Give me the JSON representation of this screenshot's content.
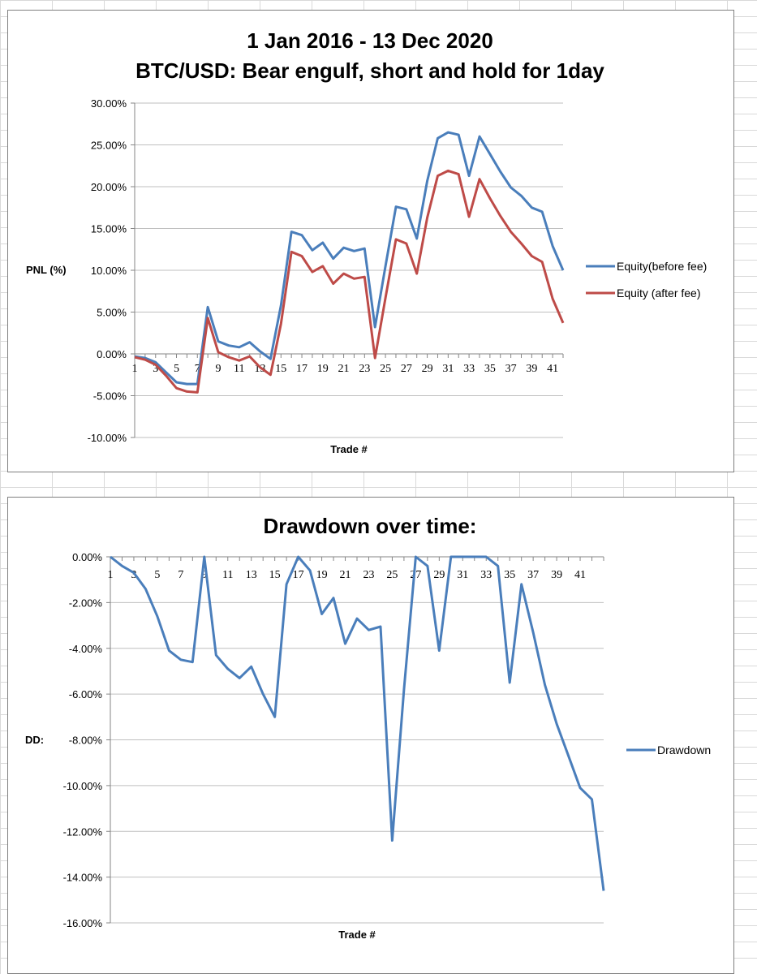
{
  "chart_data": [
    {
      "type": "line",
      "title_lines": [
        "1 Jan 2016 - 13 Dec 2020",
        "BTC/USD: Bear engulf, short and hold for 1day"
      ],
      "xlabel": "Trade #",
      "ylabel": "PNL (%)",
      "ylim": [
        -10,
        30
      ],
      "ytick_step": 5,
      "ytick_labels": [
        "30.00%",
        "25.00%",
        "20.00%",
        "15.00%",
        "10.00%",
        "5.00%",
        "0.00%",
        "-5.00%",
        "-10.00%"
      ],
      "x_tick_labels": [
        "1",
        "3",
        "5",
        "7",
        "9",
        "11",
        "13",
        "15",
        "17",
        "19",
        "21",
        "23",
        "25",
        "27",
        "29",
        "31",
        "33",
        "35",
        "37",
        "39",
        "41"
      ],
      "grid": true,
      "legend_position": "right",
      "series": [
        {
          "name": "Equity(before fee)",
          "color": "#4a7ebb",
          "values": [
            -0.3,
            -0.5,
            -1.0,
            -2.2,
            -3.4,
            -3.6,
            -3.6,
            5.6,
            1.5,
            1.0,
            0.8,
            1.4,
            0.3,
            -0.6,
            5.8,
            14.6,
            14.2,
            12.4,
            13.3,
            11.4,
            12.7,
            12.3,
            12.6,
            3.2,
            10.5,
            17.6,
            17.3,
            13.8,
            20.7,
            25.8,
            26.5,
            26.2,
            21.3,
            26.0,
            23.9,
            21.8,
            19.9,
            18.9,
            17.5,
            17.0,
            12.9,
            10.0
          ]
        },
        {
          "name": "Equity (after fee)",
          "color": "#be4b48",
          "values": [
            -0.4,
            -0.7,
            -1.3,
            -2.6,
            -4.1,
            -4.5,
            -4.6,
            4.3,
            0.2,
            -0.4,
            -0.8,
            -0.3,
            -1.6,
            -2.5,
            3.6,
            12.2,
            11.7,
            9.8,
            10.5,
            8.4,
            9.6,
            9.0,
            9.2,
            -0.5,
            6.7,
            13.7,
            13.2,
            9.6,
            16.3,
            21.3,
            21.9,
            21.5,
            16.4,
            20.9,
            18.6,
            16.5,
            14.6,
            13.2,
            11.7,
            11.0,
            6.6,
            3.7
          ]
        }
      ]
    },
    {
      "type": "line",
      "title": "Drawdown over time:",
      "xlabel": "Trade #",
      "ylabel": "DD:",
      "ylim": [
        -16,
        0
      ],
      "ytick_step": 2,
      "ytick_labels": [
        "0.00%",
        "-2.00%",
        "-4.00%",
        "-6.00%",
        "-8.00%",
        "-10.00%",
        "-12.00%",
        "-14.00%",
        "-16.00%"
      ],
      "x_tick_labels": [
        "1",
        "3",
        "5",
        "7",
        "9",
        "11",
        "13",
        "15",
        "17",
        "19",
        "21",
        "23",
        "25",
        "27",
        "29",
        "31",
        "33",
        "35",
        "37",
        "39",
        "41"
      ],
      "grid": true,
      "legend_position": "right",
      "series": [
        {
          "name": "Drawdown",
          "color": "#4a7ebb",
          "values": [
            0,
            -0.4,
            -0.7,
            -1.4,
            -2.6,
            -4.1,
            -4.5,
            -4.6,
            0,
            -4.3,
            -4.9,
            -5.3,
            -4.8,
            -6.0,
            -7.0,
            -1.2,
            0,
            -0.6,
            -2.5,
            -1.8,
            -3.8,
            -2.7,
            -3.2,
            -3.05,
            -12.4,
            -5.8,
            0,
            -0.4,
            -4.1,
            0,
            0,
            0,
            0,
            -0.4,
            -5.5,
            -1.2,
            -3.3,
            -5.6,
            -7.3,
            -8.7,
            -10.1,
            -10.6,
            -14.6
          ]
        }
      ]
    }
  ]
}
